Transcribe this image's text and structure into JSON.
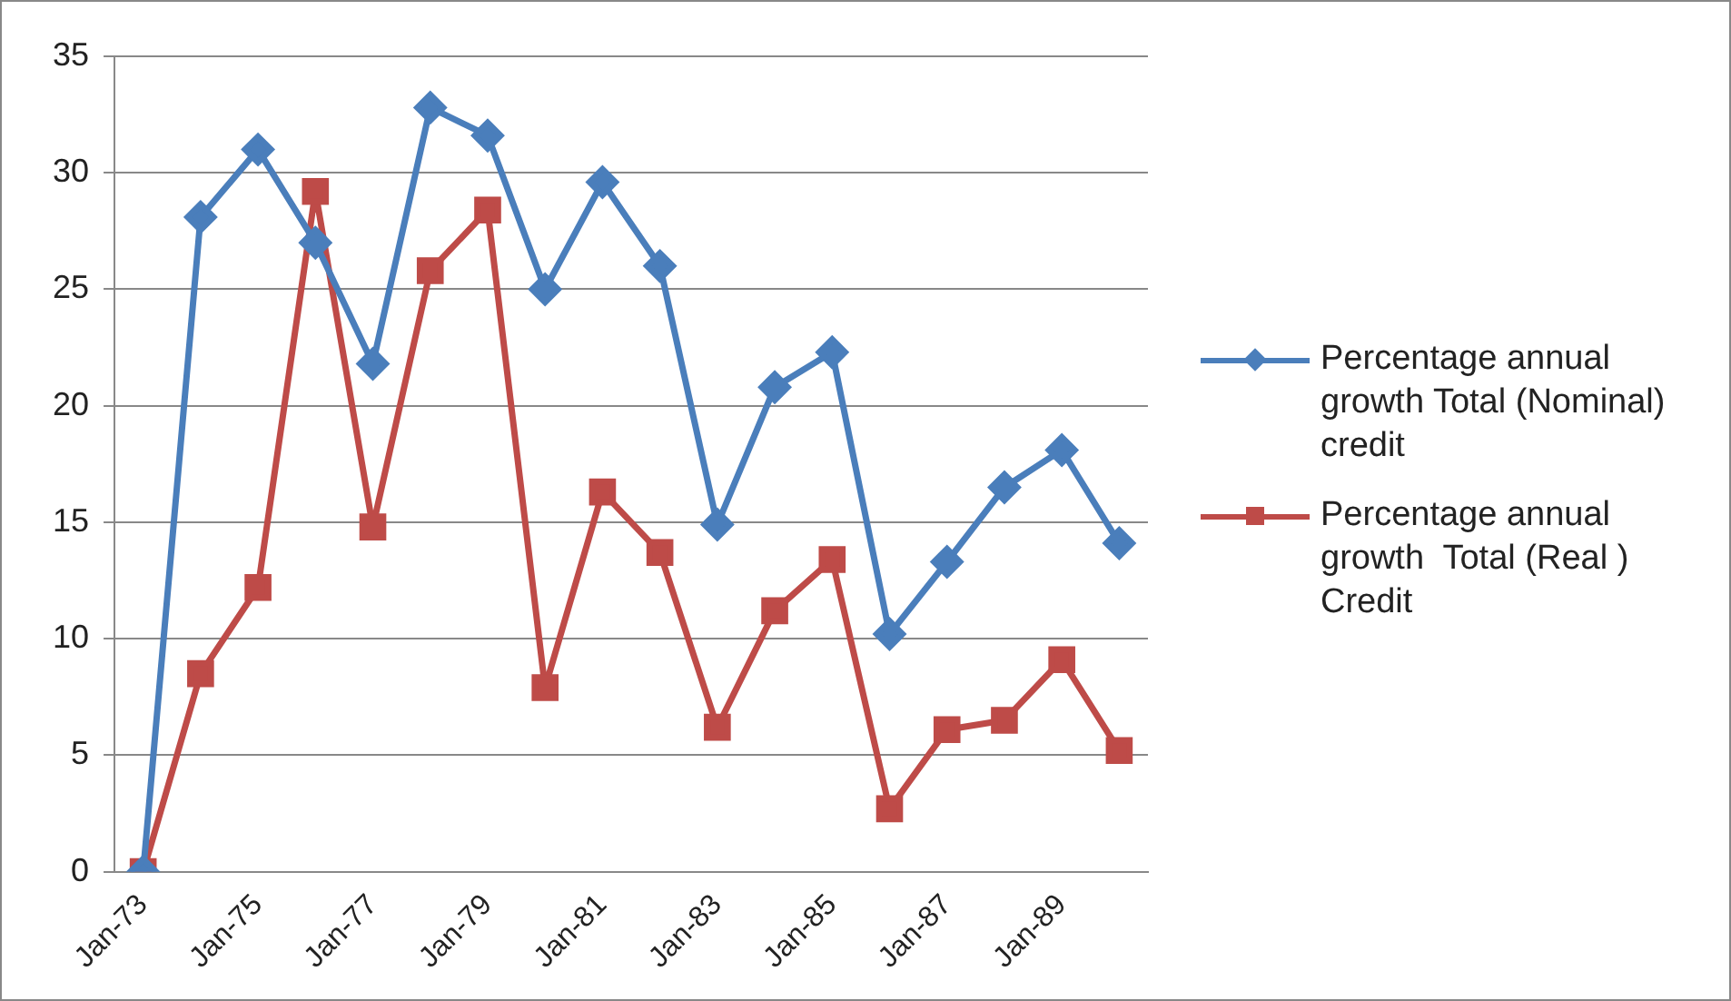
{
  "chart_data": {
    "type": "line",
    "categories": [
      "Jan-73",
      null,
      "Jan-75",
      null,
      "Jan-77",
      null,
      "Jan-79",
      null,
      "Jan-81",
      null,
      "Jan-83",
      null,
      "Jan-85",
      null,
      "Jan-87",
      null,
      "Jan-89",
      null
    ],
    "series": [
      {
        "name": "Percentage annual growth Total (Nominal) credit",
        "color": "#4a7ebb",
        "marker": "diamond",
        "values": [
          0,
          28.1,
          31,
          27,
          21.8,
          32.8,
          31.6,
          25,
          29.6,
          26,
          14.9,
          20.8,
          22.3,
          10.2,
          13.3,
          16.5,
          18.1,
          14.1
        ]
      },
      {
        "name": "Percentage annual growth  Total (Real ) Credit",
        "color": "#be4b48",
        "marker": "square",
        "values": [
          0,
          8.5,
          12.2,
          29.2,
          14.8,
          25.8,
          28.4,
          7.9,
          16.3,
          13.7,
          6.2,
          11.2,
          13.4,
          2.7,
          6.1,
          6.5,
          9.1,
          5.2
        ]
      }
    ],
    "ylim": [
      0,
      35
    ],
    "yticks": [
      0,
      5,
      10,
      15,
      20,
      25,
      30,
      35
    ],
    "grid": "y",
    "legend": "right"
  }
}
